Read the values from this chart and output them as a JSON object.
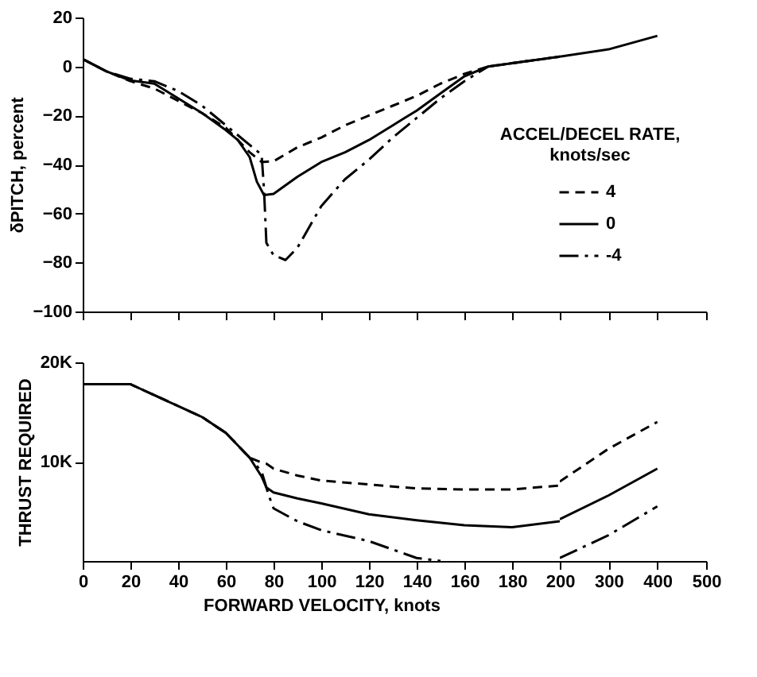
{
  "chart_data": [
    {
      "type": "line",
      "ylabel": "δPITCH, percent",
      "legend_title": "ACCEL/DECEL RATE,\nknots/sec",
      "legend": "right",
      "grid": false,
      "tick_labels": "y",
      "xlim": [
        0,
        200
      ],
      "xticks": [
        0,
        20,
        40,
        60,
        80,
        100,
        120,
        140,
        160,
        180,
        200
      ],
      "ylim": [
        -100,
        20
      ],
      "yticks": [
        -100,
        -80,
        -60,
        -40,
        -20,
        0,
        20
      ],
      "series": [
        {
          "name": "4",
          "color": "#000000",
          "line_style": "dashed",
          "x": [
            0,
            10,
            20,
            30,
            40,
            50,
            60,
            70,
            75,
            80,
            90,
            100,
            110,
            120,
            130,
            140,
            150,
            160,
            170,
            200
          ],
          "values": [
            3,
            -2,
            -6,
            -9,
            -14,
            -19,
            -25,
            -35,
            -39,
            -38.7,
            -33,
            -29,
            -24,
            -20,
            -16,
            -12,
            -7,
            -3,
            0,
            4
          ]
        },
        {
          "name": "0",
          "color": "#000000",
          "line_style": "solid",
          "x": [
            0,
            10,
            20,
            30,
            40,
            50,
            60,
            65,
            70,
            73,
            76,
            80,
            90,
            100,
            110,
            120,
            130,
            140,
            150,
            160,
            170,
            200
          ],
          "values": [
            3,
            -2,
            -5.7,
            -7,
            -13,
            -19,
            -26,
            -30,
            -37,
            -47,
            -52.5,
            -52,
            -45,
            -39,
            -35,
            -30,
            -24,
            -18,
            -11,
            -4,
            0,
            4
          ]
        },
        {
          "name": "-4",
          "color": "#000000",
          "line_style": "dashdot",
          "x": [
            0,
            10,
            20,
            30,
            40,
            50,
            60,
            70,
            75,
            76,
            77,
            80,
            85,
            90,
            100,
            110,
            120,
            130,
            140,
            150,
            160,
            170,
            200
          ],
          "values": [
            3,
            -2,
            -5,
            -6,
            -10,
            -16,
            -24,
            -32,
            -36,
            -50,
            -72,
            -77,
            -79,
            -74,
            -57,
            -46,
            -38,
            -29,
            -21,
            -13,
            -6,
            0,
            4
          ]
        }
      ]
    },
    {
      "type": "line",
      "grid": false,
      "tick_labels": false,
      "xlim": [
        200,
        500
      ],
      "xticks": [
        300,
        400,
        500
      ],
      "ylim": [
        -100,
        20
      ],
      "series": [
        {
          "color": "#000000",
          "line_style": "solid",
          "x": [
            200,
            300,
            400
          ],
          "values": [
            4,
            7,
            12.5
          ]
        }
      ]
    },
    {
      "type": "line",
      "xlabel": "FORWARD VELOCITY, knots",
      "ylabel": "THRUST REQUIRED",
      "grid": false,
      "xlim": [
        0,
        200
      ],
      "xticks": [
        0,
        20,
        40,
        60,
        80,
        100,
        120,
        140,
        160,
        180,
        200
      ],
      "ylim": [
        0,
        20000
      ],
      "yticks": [
        {
          "value": 10000,
          "label": "10K"
        },
        {
          "value": 20000,
          "label": "20K"
        }
      ],
      "series": [
        {
          "color": "#000000",
          "line_style": "dashed",
          "x": [
            0,
            20,
            40,
            50,
            60,
            70,
            75,
            77,
            80,
            90,
            100,
            120,
            140,
            160,
            180,
            200
          ],
          "values": [
            17800,
            17800,
            15600,
            14500,
            12900,
            10400,
            9900,
            9800,
            9300,
            8600,
            8100,
            7700,
            7300,
            7200,
            7200,
            7600
          ]
        },
        {
          "color": "#000000",
          "line_style": "solid",
          "x": [
            0,
            20,
            40,
            50,
            60,
            70,
            75,
            77,
            80,
            90,
            100,
            120,
            140,
            160,
            180,
            200
          ],
          "values": [
            17800,
            17800,
            15600,
            14500,
            12900,
            10400,
            8500,
            7400,
            6900,
            6300,
            5800,
            4700,
            4100,
            3600,
            3400,
            4000
          ]
        },
        {
          "color": "#000000",
          "line_style": "dashdot",
          "x": [
            0,
            20,
            40,
            50,
            60,
            70,
            75,
            78,
            80,
            90,
            100,
            120,
            140,
            150
          ],
          "values": [
            17800,
            17800,
            15600,
            14500,
            12900,
            10400,
            9000,
            6600,
            5300,
            4000,
            3100,
            2000,
            300,
            0
          ]
        }
      ]
    },
    {
      "type": "line",
      "grid": false,
      "tick_labels": "x",
      "xlim": [
        200,
        500
      ],
      "xticks": [
        300,
        400,
        500
      ],
      "ylim": [
        0,
        20000
      ],
      "series": [
        {
          "color": "#000000",
          "line_style": "dashed",
          "x": [
            200,
            300,
            400
          ],
          "values": [
            8000,
            11300,
            14000
          ]
        },
        {
          "color": "#000000",
          "line_style": "solid",
          "x": [
            200,
            300,
            400
          ],
          "values": [
            4200,
            6600,
            9300
          ]
        },
        {
          "color": "#000000",
          "line_style": "dashdot",
          "x": [
            200,
            300,
            400
          ],
          "values": [
            300,
            2600,
            5500
          ]
        }
      ]
    }
  ]
}
